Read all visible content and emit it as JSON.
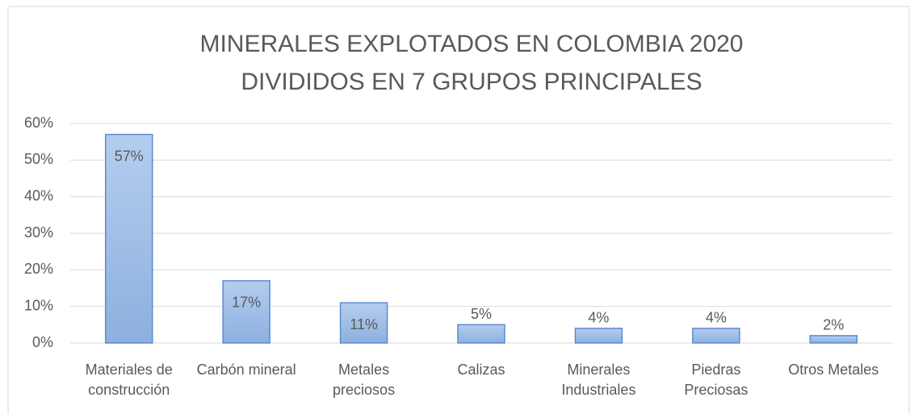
{
  "chart_data": {
    "type": "bar",
    "title": [
      "MINERALES EXPLOTADOS EN COLOMBIA 2020",
      "DIVIDIDOS EN 7 GRUPOS PRINCIPALES"
    ],
    "categories": [
      "Materiales de construcción",
      "Carbón mineral",
      "Metales preciosos",
      "Calizas",
      "Minerales Industriales",
      "Piedras Preciosas",
      "Otros Metales"
    ],
    "values": [
      57,
      17,
      11,
      5,
      4,
      4,
      2
    ],
    "value_labels": [
      "57%",
      "17%",
      "11%",
      "5%",
      "4%",
      "4%",
      "2%"
    ],
    "color": "#9dbde6",
    "ylim": [
      0,
      60
    ],
    "yticks": [
      {
        "value": 0,
        "label": "0%"
      },
      {
        "value": 10,
        "label": "10%"
      },
      {
        "value": 20,
        "label": "20%"
      },
      {
        "value": 30,
        "label": "30%"
      },
      {
        "value": 40,
        "label": "40%"
      },
      {
        "value": 50,
        "label": "50%"
      },
      {
        "value": 60,
        "label": "60%"
      }
    ],
    "grid": true
  }
}
